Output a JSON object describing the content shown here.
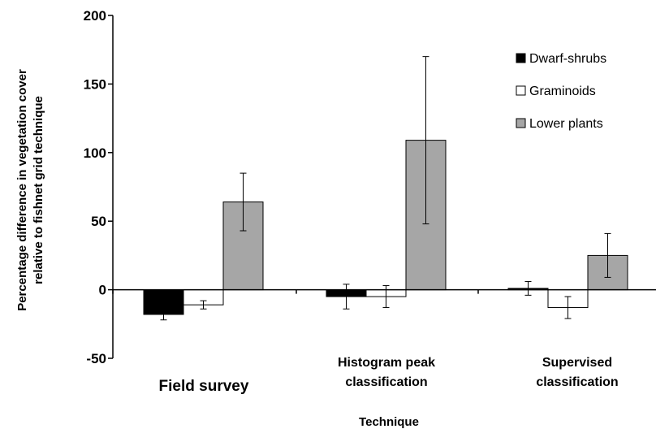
{
  "chart_data": {
    "type": "bar",
    "title": "",
    "xlabel": "Technique",
    "ylabel_lines": [
      "Percentage difference in vegetation cover",
      "relative to fishnet grid technique"
    ],
    "categories": [
      {
        "lines": [
          "Field survey"
        ],
        "size": "large"
      },
      {
        "lines": [
          "Histogram peak",
          "classification"
        ],
        "size": "small"
      },
      {
        "lines": [
          "Supervised",
          "classification"
        ],
        "size": "small"
      }
    ],
    "series": [
      {
        "name": "Dwarf-shrubs",
        "color": "#000000",
        "values": [
          -18,
          -5,
          1
        ],
        "error": [
          4,
          9,
          5
        ]
      },
      {
        "name": "Graminoids",
        "color": "#ffffff",
        "values": [
          -11,
          -5,
          -13
        ],
        "error": [
          3,
          8,
          8
        ]
      },
      {
        "name": "Lower plants",
        "color": "#a6a6a6",
        "values": [
          64,
          109,
          25
        ],
        "error": [
          21,
          61,
          16
        ]
      }
    ],
    "ylim": [
      -50,
      200
    ],
    "yticks": [
      -50,
      0,
      50,
      100,
      150,
      200
    ],
    "grid": false,
    "legend_position": "right"
  }
}
